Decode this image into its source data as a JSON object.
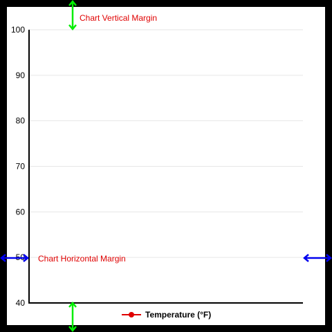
{
  "chart_data": {
    "type": "line",
    "title": "",
    "xlabel": "",
    "ylabel": "",
    "ylim": [
      40,
      100
    ],
    "yticks": [
      40,
      50,
      60,
      70,
      80,
      90,
      100
    ],
    "x": [],
    "series": [
      {
        "name": "Temperature (°F)",
        "values": [],
        "color": "#e00000"
      }
    ],
    "grid": true,
    "legend": "bottom-center"
  },
  "annotations": {
    "vertical_margin_label": "Chart Vertical Margin",
    "horizontal_margin_label": "Chart Horizontal Margin"
  },
  "colors": {
    "background": "#000000",
    "panel": "#ffffff",
    "gridline": "#e6e6e6",
    "axis": "#000000",
    "annotation_text": "#e00000",
    "vertical_arrow": "#00ee00",
    "horizontal_arrow": "#0000ee"
  }
}
